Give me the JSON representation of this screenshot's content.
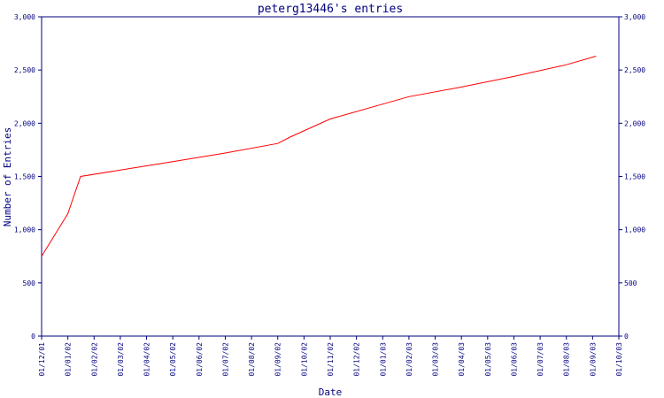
{
  "chart_data": {
    "type": "line",
    "title": "peterg13446's entries",
    "xlabel": "Date",
    "ylabel": "Number of Entries",
    "ylim": [
      0,
      3000
    ],
    "y_ticks": [
      0,
      500,
      1000,
      1500,
      2000,
      2500,
      3000
    ],
    "y_tick_labels": [
      "0",
      "500",
      "1,000",
      "1,500",
      "2,000",
      "2,500",
      "3,000"
    ],
    "x_tick_labels": [
      "01/12/01",
      "01/01/02",
      "01/02/02",
      "01/03/02",
      "01/04/02",
      "01/05/02",
      "01/06/02",
      "01/07/02",
      "01/08/02",
      "01/09/02",
      "01/10/02",
      "01/11/02",
      "01/12/02",
      "01/01/03",
      "01/02/03",
      "01/03/03",
      "01/04/03",
      "01/05/03",
      "01/06/03",
      "01/07/03",
      "01/08/03",
      "01/09/03",
      "01/10/03"
    ],
    "right_axis": true,
    "grid": false,
    "colors": {
      "axis": "#000080",
      "line": "#ff0000",
      "text": "#000080"
    },
    "series": [
      {
        "x": [
          "2001-12-01",
          "2002-01-01",
          "2002-01-16",
          "2002-03-01",
          "2002-05-01",
          "2002-07-01",
          "2002-09-01",
          "2002-09-15",
          "2002-11-01",
          "2003-01-01",
          "2003-02-01",
          "2003-04-01",
          "2003-06-01",
          "2003-08-01",
          "2003-09-05"
        ],
        "values": [
          750,
          1150,
          1500,
          1560,
          1640,
          1720,
          1810,
          1870,
          2040,
          2180,
          2250,
          2340,
          2440,
          2550,
          2630
        ]
      }
    ]
  }
}
